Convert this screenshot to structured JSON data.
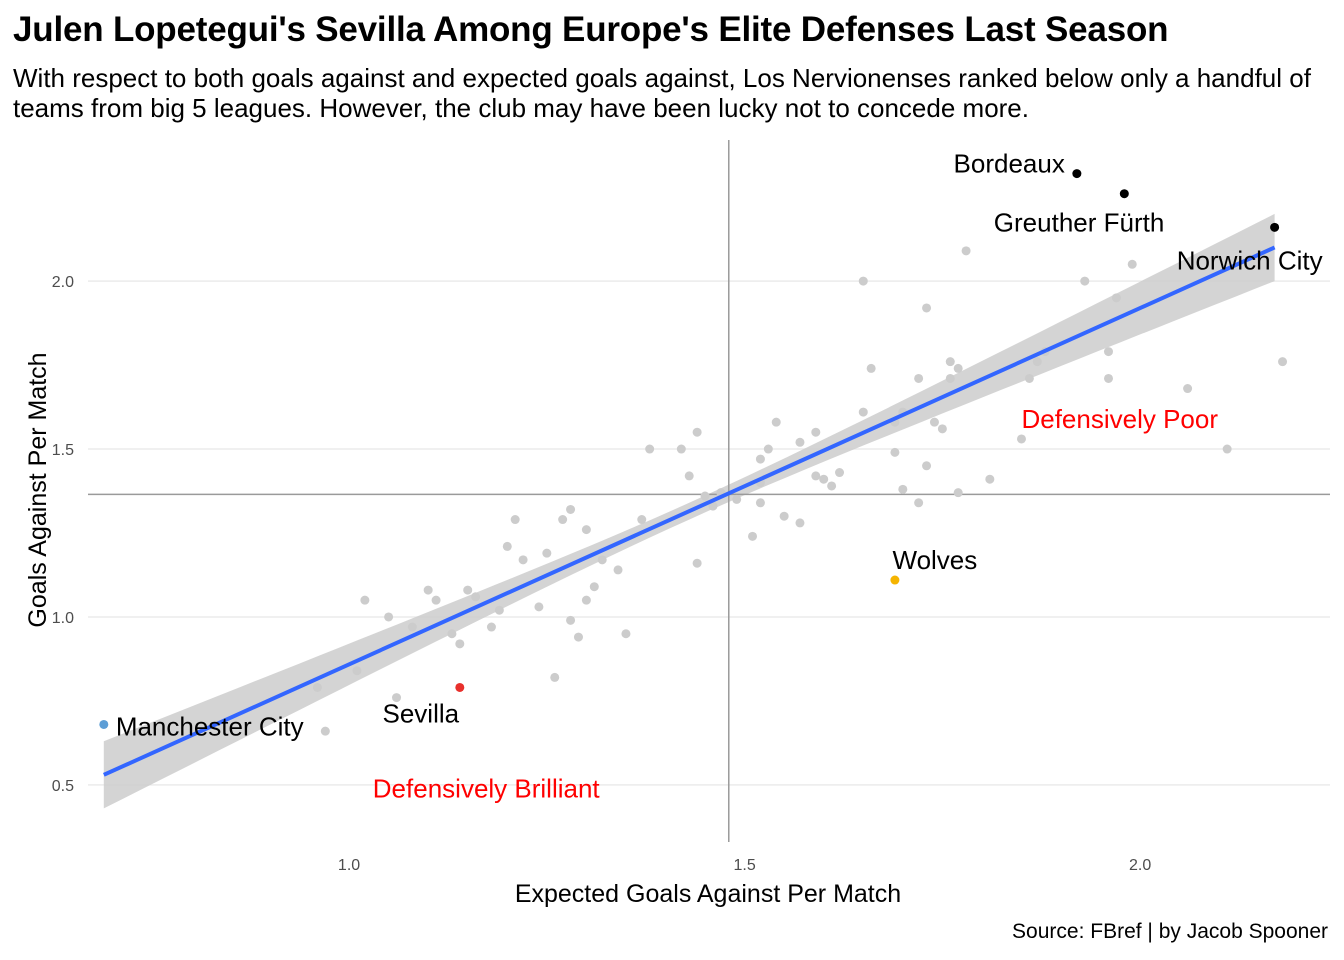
{
  "header": {
    "title": "Julen Lopetegui's Sevilla Among Europe's Elite Defenses Last Season",
    "subtitle": "With respect to both goals against and expected goals against, Los Nervionenses ranked below only a handful of teams from big 5 leagues. However, the club may have been lucky not to concede more."
  },
  "footer": {
    "source": "Source: FBref | by Jacob Spooner"
  },
  "chart_data": {
    "type": "scatter",
    "title": "Julen Lopetegui's Sevilla Among Europe's Elite Defenses Last Season",
    "subtitle": "With respect to both goals against and expected goals against, Los Nervionenses ranked below only a handful of teams from big 5 leagues. However, the club may have been lucky not to concede more.",
    "xlabel": "Expected Goals Against Per Match",
    "ylabel": "Goals Against Per Match",
    "xlim": [
      0.67,
      2.24
    ],
    "ylim": [
      0.33,
      2.42
    ],
    "x_ticks": [
      1.0,
      1.5,
      2.0
    ],
    "y_ticks": [
      0.5,
      1.0,
      1.5,
      2.0
    ],
    "x_tick_labels": [
      "1.0",
      "1.5",
      "2.0"
    ],
    "y_tick_labels": [
      "0.5",
      "1.0",
      "1.5",
      "2.0"
    ],
    "grid": "horizontal",
    "reference_lines": {
      "x_mean": 1.48,
      "y_mean": 1.365
    },
    "trend": {
      "method": "linear",
      "x": [
        0.69,
        2.17
      ],
      "y": [
        0.53,
        2.1
      ],
      "ci_halfwidth_ends": 0.1,
      "ci_halfwidth_center": 0.025
    },
    "colors": {
      "others": "#cccccc",
      "trend": "#3366ff",
      "ribbon": "#cccccc",
      "refline": "#9a9a9a",
      "grid": "#ebebeb",
      "highlight_zone": "#ff0000"
    },
    "highlighted": [
      {
        "label": "Bordeaux",
        "x": 1.92,
        "y": 2.32,
        "color": "#000000"
      },
      {
        "label": "Greuther Fürth",
        "x": 1.98,
        "y": 2.26,
        "color": "#000000"
      },
      {
        "label": "Norwich City",
        "x": 2.17,
        "y": 2.16,
        "color": "#000000"
      },
      {
        "label": "Wolves",
        "x": 1.69,
        "y": 1.11,
        "color": "#f5b400"
      },
      {
        "label": "Sevilla",
        "x": 1.14,
        "y": 0.79,
        "color": "#e8302c"
      },
      {
        "label": "Manchester City",
        "x": 0.69,
        "y": 0.68,
        "color": "#5d9ed6"
      }
    ],
    "annotations": [
      {
        "text": "Defensively Poor",
        "x": 1.85,
        "y": 1.59
      },
      {
        "text": "Defensively Brilliant",
        "x": 1.03,
        "y": 0.49
      }
    ],
    "others": [
      [
        0.96,
        0.79
      ],
      [
        0.97,
        0.66
      ],
      [
        1.01,
        0.84
      ],
      [
        1.02,
        1.05
      ],
      [
        1.05,
        1.0
      ],
      [
        1.06,
        0.76
      ],
      [
        1.08,
        0.97
      ],
      [
        1.1,
        1.08
      ],
      [
        1.11,
        1.05
      ],
      [
        1.13,
        0.95
      ],
      [
        1.14,
        0.92
      ],
      [
        1.15,
        1.08
      ],
      [
        1.16,
        1.06
      ],
      [
        1.18,
        0.97
      ],
      [
        1.19,
        1.02
      ],
      [
        1.2,
        1.21
      ],
      [
        1.21,
        1.29
      ],
      [
        1.22,
        1.17
      ],
      [
        1.24,
        1.03
      ],
      [
        1.25,
        1.19
      ],
      [
        1.26,
        0.82
      ],
      [
        1.27,
        1.29
      ],
      [
        1.28,
        1.32
      ],
      [
        1.28,
        0.99
      ],
      [
        1.29,
        0.94
      ],
      [
        1.3,
        1.26
      ],
      [
        1.3,
        1.05
      ],
      [
        1.31,
        1.09
      ],
      [
        1.32,
        1.17
      ],
      [
        1.34,
        1.14
      ],
      [
        1.35,
        0.95
      ],
      [
        1.37,
        1.29
      ],
      [
        1.38,
        1.5
      ],
      [
        1.42,
        1.5
      ],
      [
        1.43,
        1.42
      ],
      [
        1.44,
        1.55
      ],
      [
        1.44,
        1.16
      ],
      [
        1.45,
        1.36
      ],
      [
        1.46,
        1.33
      ],
      [
        1.47,
        1.37
      ],
      [
        1.49,
        1.35
      ],
      [
        1.51,
        1.24
      ],
      [
        1.52,
        1.34
      ],
      [
        1.52,
        1.4
      ],
      [
        1.52,
        1.47
      ],
      [
        1.53,
        1.5
      ],
      [
        1.54,
        1.58
      ],
      [
        1.55,
        1.3
      ],
      [
        1.57,
        1.52
      ],
      [
        1.57,
        1.28
      ],
      [
        1.59,
        1.42
      ],
      [
        1.59,
        1.55
      ],
      [
        1.6,
        1.41
      ],
      [
        1.61,
        1.39
      ],
      [
        1.62,
        1.43
      ],
      [
        1.65,
        1.61
      ],
      [
        1.65,
        2.0
      ],
      [
        1.66,
        1.74
      ],
      [
        1.69,
        1.49
      ],
      [
        1.69,
        1.58
      ],
      [
        1.7,
        1.61
      ],
      [
        1.7,
        1.38
      ],
      [
        1.72,
        1.71
      ],
      [
        1.72,
        1.34
      ],
      [
        1.73,
        1.45
      ],
      [
        1.73,
        1.92
      ],
      [
        1.74,
        1.58
      ],
      [
        1.75,
        1.56
      ],
      [
        1.76,
        1.76
      ],
      [
        1.76,
        1.71
      ],
      [
        1.77,
        1.74
      ],
      [
        1.77,
        1.37
      ],
      [
        1.78,
        2.09
      ],
      [
        1.81,
        1.41
      ],
      [
        1.85,
        1.53
      ],
      [
        1.86,
        1.71
      ],
      [
        1.87,
        1.76
      ],
      [
        1.88,
        1.79
      ],
      [
        1.93,
        2.0
      ],
      [
        1.96,
        1.71
      ],
      [
        1.96,
        1.79
      ],
      [
        1.97,
        1.95
      ],
      [
        1.99,
        2.05
      ],
      [
        2.06,
        1.68
      ],
      [
        2.11,
        1.5
      ],
      [
        2.18,
        1.76
      ]
    ]
  }
}
